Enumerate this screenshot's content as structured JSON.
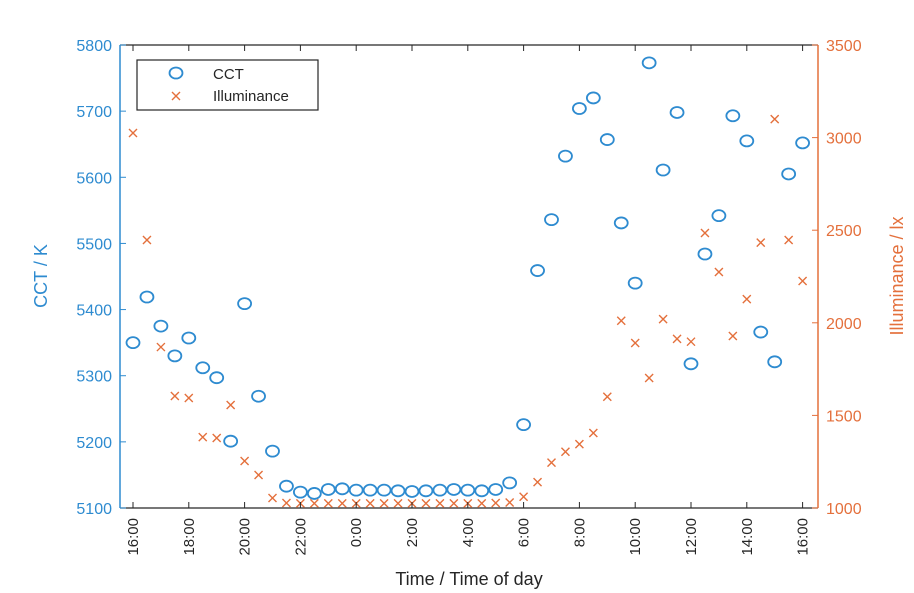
{
  "chart_data": {
    "type": "scatter",
    "xlabel": "Time / Time of day",
    "ylabel_left": "CCT / K",
    "ylabel_right": "Illuminance / lx",
    "ylim_left": [
      5100,
      5800
    ],
    "ylim_right": [
      1000,
      3500
    ],
    "yticks_left": [
      5100,
      5200,
      5300,
      5400,
      5500,
      5600,
      5700,
      5800
    ],
    "yticks_right": [
      1000,
      1500,
      2000,
      2500,
      3000,
      3500
    ],
    "xticks": [
      "16:00",
      "18:00",
      "20:00",
      "22:00",
      "0:00",
      "2:00",
      "4:00",
      "6:00",
      "8:00",
      "10:00",
      "12:00",
      "14:00",
      "16:00"
    ],
    "legend_placement": "top-left",
    "grid": false,
    "colors": {
      "left_axis": "#2e8bd0",
      "right_axis": "#e4703c",
      "cct": "#2e8bd0",
      "illuminance": "#e4703c"
    },
    "x": [
      "16:00",
      "16:30",
      "17:00",
      "17:30",
      "18:00",
      "18:30",
      "19:00",
      "19:30",
      "20:00",
      "20:30",
      "21:00",
      "21:30",
      "22:00",
      "22:30",
      "23:00",
      "23:30",
      "0:00",
      "0:30",
      "1:00",
      "1:30",
      "2:00",
      "2:30",
      "3:00",
      "3:30",
      "4:00",
      "4:30",
      "5:00",
      "5:30",
      "6:00",
      "6:30",
      "7:00",
      "7:30",
      "8:00",
      "8:30",
      "9:00",
      "9:30",
      "10:00",
      "10:30",
      "11:00",
      "11:30",
      "12:00",
      "12:30",
      "13:00",
      "13:30",
      "14:00",
      "14:30",
      "15:00",
      "15:30",
      "16:00"
    ],
    "series": [
      {
        "name": "CCT",
        "axis": "left",
        "marker": "circle",
        "values": [
          5350,
          5419,
          5375,
          5330,
          5357,
          5312,
          5297,
          5201,
          5409,
          5269,
          5186,
          5133,
          5124,
          5122,
          5128,
          5129,
          5127,
          5127,
          5127,
          5126,
          5125,
          5126,
          5127,
          5128,
          5127,
          5126,
          5128,
          5138,
          5226,
          5459,
          5536,
          5632,
          5704,
          5720,
          5657,
          5531,
          5440,
          5773,
          5611,
          5698,
          5318,
          5484,
          5542,
          5693,
          5655,
          5366,
          5321,
          5605,
          5652
        ]
      },
      {
        "name": "Illuminance",
        "axis": "right",
        "marker": "x",
        "values": [
          3025,
          2447,
          1869,
          1605,
          1594,
          1383,
          1378,
          1556,
          1254,
          1178,
          1054,
          1027,
          1025,
          1025,
          1025,
          1025,
          1025,
          1025,
          1025,
          1025,
          1025,
          1025,
          1025,
          1025,
          1025,
          1025,
          1027,
          1030,
          1061,
          1140,
          1245,
          1304,
          1345,
          1405,
          1601,
          2011,
          1891,
          1702,
          2020,
          1913,
          1898,
          2485,
          2274,
          1929,
          2128,
          2433,
          3100,
          2447,
          2226
        ]
      }
    ]
  }
}
